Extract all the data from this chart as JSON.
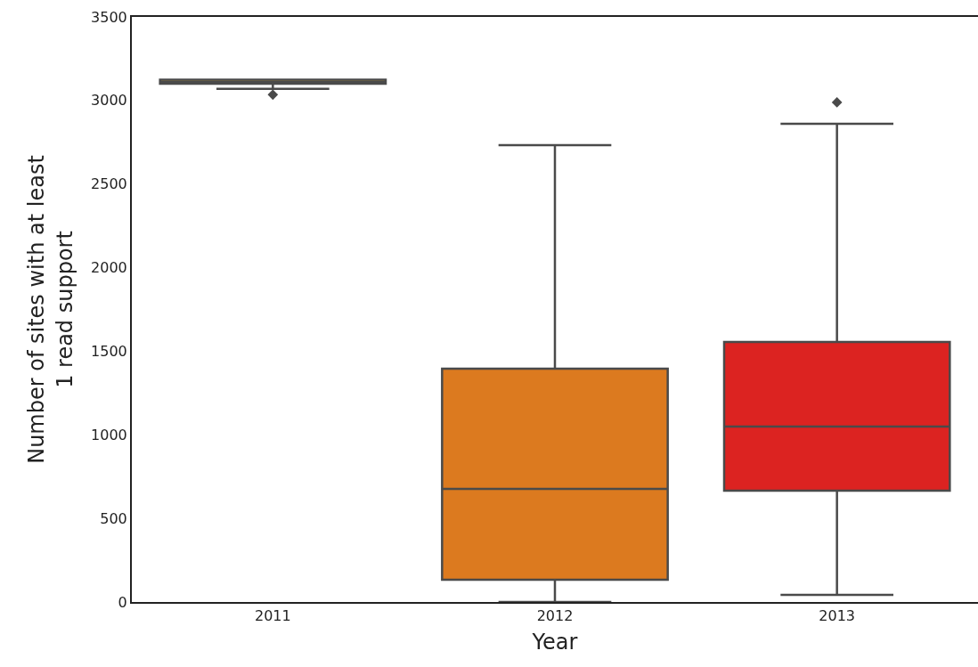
{
  "chart_data": {
    "type": "box",
    "xlabel": "Year",
    "ylabel": "Number of sites with at least\n1 read support",
    "categories": [
      "2011",
      "2012",
      "2013"
    ],
    "colors": [
      "#b09040",
      "#dc7a1f",
      "#dc2321"
    ],
    "boxes": [
      {
        "low": 3070,
        "q1": 3100,
        "median": 3110,
        "q3": 3125,
        "high": 3125,
        "outliers": [
          3035
        ]
      },
      {
        "low": 0,
        "q1": 133,
        "median": 677,
        "q3": 1396,
        "high": 2733
      },
      {
        "low": 43,
        "q1": 666,
        "median": 1050,
        "q3": 1556,
        "high": 2861,
        "outliers": [
          2989
        ]
      }
    ],
    "ylim": [
      0,
      3500
    ],
    "yticks": [
      0,
      500,
      1000,
      1500,
      2000,
      2500,
      3000,
      3500
    ],
    "grid": false,
    "marker": "diamond"
  }
}
